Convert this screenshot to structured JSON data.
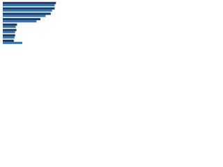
{
  "chart_data": {
    "type": "hbar",
    "categories": [
      null,
      null,
      null,
      null,
      null,
      null,
      null,
      null
    ],
    "series": [
      {
        "color": "#1f3864",
        "values": [
          82,
          80,
          74,
          58,
          22,
          21,
          19,
          17
        ]
      },
      {
        "color": "#2e75b6",
        "values": [
          80,
          76,
          66,
          52,
          20,
          19,
          18,
          30
        ]
      }
    ],
    "xlim": [
      0,
      100
    ]
  }
}
